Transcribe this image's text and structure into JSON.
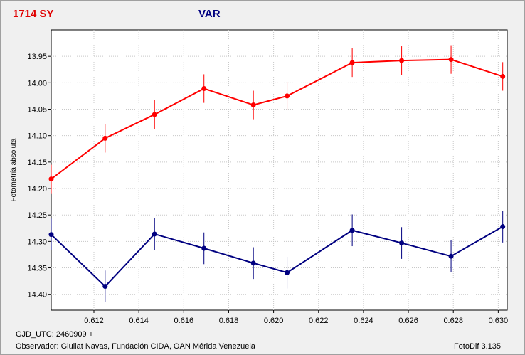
{
  "header": {
    "star_name": "1714 SY",
    "filter": "VAR"
  },
  "footer": {
    "date_line": "GJD_UTC: 2460909 +",
    "observer_line": "Observador: Giuliat Navas, Fundación CIDA, OAN Mérida Venezuela",
    "software": "FotoDif 3.135"
  },
  "chart_data": {
    "type": "line",
    "ylabel": "Fotometría absoluta",
    "xlabel": "",
    "xlim": [
      0.6101,
      0.6304
    ],
    "ylim": [
      14.43,
      13.9
    ],
    "y_inverted": true,
    "grid": true,
    "x_ticks": [
      "0.612",
      "0.614",
      "0.616",
      "0.618",
      "0.620",
      "0.622",
      "0.624",
      "0.626",
      "0.628",
      "0.630"
    ],
    "y_ticks": [
      "13.95",
      "14.00",
      "14.05",
      "14.10",
      "14.15",
      "14.20",
      "14.25",
      "14.30",
      "14.35",
      "14.40"
    ],
    "x_tick_values": [
      0.612,
      0.614,
      0.616,
      0.618,
      0.62,
      0.622,
      0.624,
      0.626,
      0.628,
      0.63
    ],
    "y_tick_values": [
      13.95,
      14.0,
      14.05,
      14.1,
      14.15,
      14.2,
      14.25,
      14.3,
      14.35,
      14.4
    ],
    "series": [
      {
        "color": "#ff0000",
        "x": [
          0.6101,
          0.6125,
          0.6147,
          0.6169,
          0.6191,
          0.6206,
          0.6235,
          0.6257,
          0.6279,
          0.6302
        ],
        "y": [
          14.182,
          14.105,
          14.06,
          14.011,
          14.042,
          14.025,
          13.962,
          13.958,
          13.956,
          13.988
        ],
        "err": [
          0.027,
          0.027,
          0.027,
          0.027,
          0.027,
          0.027,
          0.027,
          0.027,
          0.027,
          0.027
        ]
      },
      {
        "color": "#000080",
        "x": [
          0.6101,
          0.6125,
          0.6147,
          0.6169,
          0.6191,
          0.6206,
          0.6235,
          0.6257,
          0.6279,
          0.6302
        ],
        "y": [
          14.287,
          14.385,
          14.286,
          14.313,
          14.341,
          14.359,
          14.279,
          14.303,
          14.328,
          14.272
        ],
        "err": [
          0.03,
          0.03,
          0.03,
          0.03,
          0.03,
          0.03,
          0.03,
          0.03,
          0.03,
          0.03
        ]
      }
    ]
  }
}
